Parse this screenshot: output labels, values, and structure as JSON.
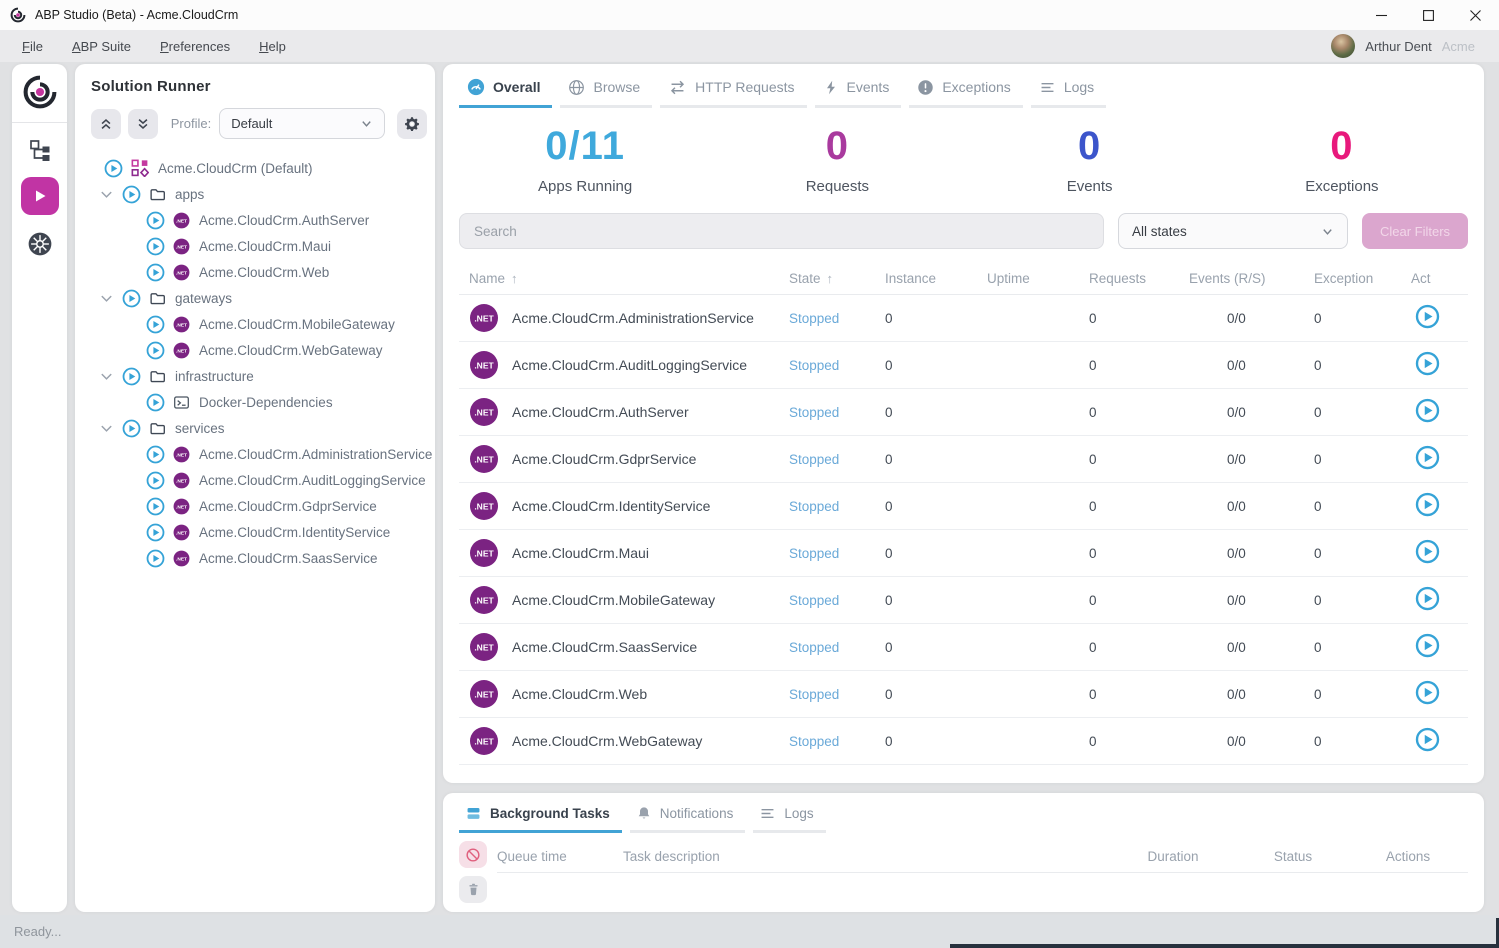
{
  "window": {
    "title": "ABP Studio (Beta) - Acme.CloudCrm"
  },
  "menubar": {
    "items": [
      {
        "label": "File"
      },
      {
        "label": "ABP Suite"
      },
      {
        "label": "Preferences"
      },
      {
        "label": "Help"
      }
    ],
    "user": {
      "name": "Arthur Dent",
      "org": "Acme"
    }
  },
  "solution_runner": {
    "title": "Solution Runner",
    "profile_label": "Profile:",
    "profile_value": "Default",
    "tree": {
      "root": {
        "label": "Acme.CloudCrm (Default)"
      },
      "groups": [
        {
          "label": "apps",
          "child_icon": "dotnet",
          "children": [
            "Acme.CloudCrm.AuthServer",
            "Acme.CloudCrm.Maui",
            "Acme.CloudCrm.Web"
          ]
        },
        {
          "label": "gateways",
          "child_icon": "dotnet",
          "children": [
            "Acme.CloudCrm.MobileGateway",
            "Acme.CloudCrm.WebGateway"
          ]
        },
        {
          "label": "infrastructure",
          "child_icon": "terminal",
          "children": [
            "Docker-Dependencies"
          ]
        },
        {
          "label": "services",
          "child_icon": "dotnet",
          "children": [
            "Acme.CloudCrm.AdministrationService",
            "Acme.CloudCrm.AuditLoggingService",
            "Acme.CloudCrm.GdprService",
            "Acme.CloudCrm.IdentityService",
            "Acme.CloudCrm.SaasService"
          ]
        }
      ]
    }
  },
  "main": {
    "tabs": [
      {
        "label": "Overall",
        "icon": "dashboard-icon",
        "active": true
      },
      {
        "label": "Browse",
        "icon": "globe-icon",
        "active": false
      },
      {
        "label": "HTTP Requests",
        "icon": "http-swap-icon",
        "active": false
      },
      {
        "label": "Events",
        "icon": "bolt-icon",
        "active": false
      },
      {
        "label": "Exceptions",
        "icon": "exception-icon",
        "active": false
      },
      {
        "label": "Logs",
        "icon": "logs-icon",
        "active": false
      }
    ],
    "stats": [
      {
        "value": "0/11",
        "label": "Apps Running",
        "color": "#3fa9dc"
      },
      {
        "value": "0",
        "label": "Requests",
        "color": "#a93a9e"
      },
      {
        "value": "0",
        "label": "Events",
        "color": "#3c55cb"
      },
      {
        "value": "0",
        "label": "Exceptions",
        "color": "#e8197c"
      }
    ],
    "filters": {
      "search_placeholder": "Search",
      "state_filter_value": "All states",
      "clear_button_label": "Clear Filters"
    },
    "table": {
      "sort_icon": "↑",
      "columns": [
        {
          "label": "Name",
          "sorted": true
        },
        {
          "label": "State",
          "sorted": true
        },
        {
          "label": "Instance",
          "sorted": false
        },
        {
          "label": "Uptime",
          "sorted": false
        },
        {
          "label": "Requests",
          "sorted": false
        },
        {
          "label": "Events (R/S)",
          "sorted": false
        },
        {
          "label": "Exception",
          "sorted": false
        },
        {
          "label": "Act",
          "sorted": false
        }
      ],
      "rows": [
        {
          "name": "Acme.CloudCrm.AdministrationService",
          "state": "Stopped",
          "instance": "0",
          "uptime": "",
          "requests": "0",
          "events": "0/0",
          "exceptions": "0"
        },
        {
          "name": "Acme.CloudCrm.AuditLoggingService",
          "state": "Stopped",
          "instance": "0",
          "uptime": "",
          "requests": "0",
          "events": "0/0",
          "exceptions": "0"
        },
        {
          "name": "Acme.CloudCrm.AuthServer",
          "state": "Stopped",
          "instance": "0",
          "uptime": "",
          "requests": "0",
          "events": "0/0",
          "exceptions": "0"
        },
        {
          "name": "Acme.CloudCrm.GdprService",
          "state": "Stopped",
          "instance": "0",
          "uptime": "",
          "requests": "0",
          "events": "0/0",
          "exceptions": "0"
        },
        {
          "name": "Acme.CloudCrm.IdentityService",
          "state": "Stopped",
          "instance": "0",
          "uptime": "",
          "requests": "0",
          "events": "0/0",
          "exceptions": "0"
        },
        {
          "name": "Acme.CloudCrm.Maui",
          "state": "Stopped",
          "instance": "0",
          "uptime": "",
          "requests": "0",
          "events": "0/0",
          "exceptions": "0"
        },
        {
          "name": "Acme.CloudCrm.MobileGateway",
          "state": "Stopped",
          "instance": "0",
          "uptime": "",
          "requests": "0",
          "events": "0/0",
          "exceptions": "0"
        },
        {
          "name": "Acme.CloudCrm.SaasService",
          "state": "Stopped",
          "instance": "0",
          "uptime": "",
          "requests": "0",
          "events": "0/0",
          "exceptions": "0"
        },
        {
          "name": "Acme.CloudCrm.Web",
          "state": "Stopped",
          "instance": "0",
          "uptime": "",
          "requests": "0",
          "events": "0/0",
          "exceptions": "0"
        },
        {
          "name": "Acme.CloudCrm.WebGateway",
          "state": "Stopped",
          "instance": "0",
          "uptime": "",
          "requests": "0",
          "events": "0/0",
          "exceptions": "0"
        }
      ]
    }
  },
  "bottom_panel": {
    "tabs": [
      {
        "label": "Background Tasks",
        "icon": "tasks-icon",
        "active": true
      },
      {
        "label": "Notifications",
        "icon": "bell-icon",
        "active": false
      },
      {
        "label": "Logs",
        "icon": "logs-icon",
        "active": false
      }
    ],
    "columns": [
      "Queue time",
      "Task description",
      "Duration",
      "Status",
      "Actions"
    ]
  },
  "statusbar": {
    "text": "Ready..."
  },
  "colors": {
    "accent_blue": "#41a3d5",
    "accent_magenta": "#c134a4",
    "dotnet_purple": "#7b2382",
    "stopped_blue": "#6aa9d8"
  }
}
